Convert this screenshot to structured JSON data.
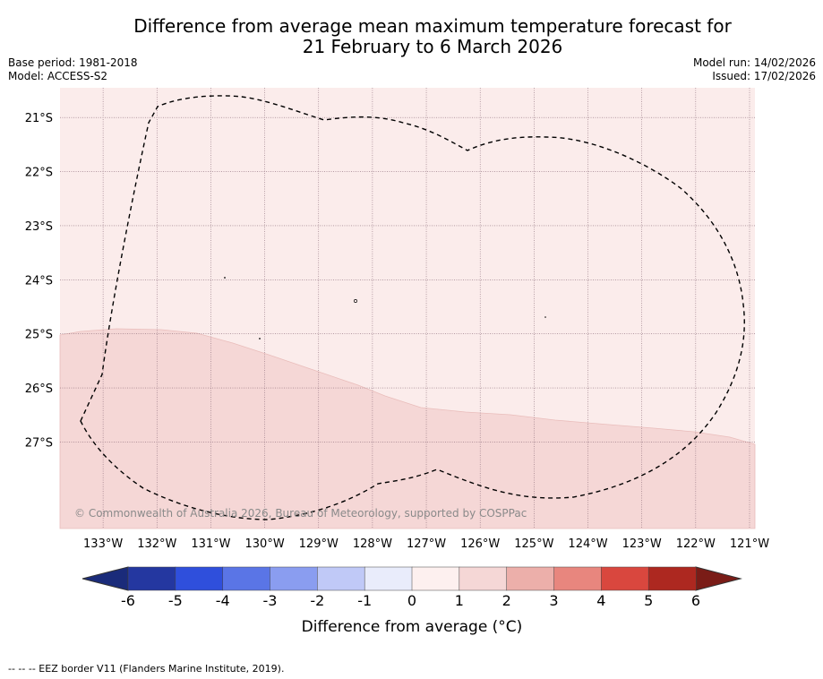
{
  "header": {
    "title_line1": "Difference from average mean maximum temperature forecast for",
    "title_line2": "21 February to 6 March 2026",
    "base_period": "Base period: 1981-2018",
    "model": "Model: ACCESS-S2",
    "model_run": "Model run: 14/02/2026",
    "issued": "Issued: 17/02/2026"
  },
  "map": {
    "lon_labels": [
      "133°W",
      "132°W",
      "131°W",
      "130°W",
      "129°W",
      "128°W",
      "127°W",
      "126°W",
      "125°W",
      "124°W",
      "123°W",
      "122°W",
      "121°W"
    ],
    "lat_labels": [
      "21°S",
      "22°S",
      "23°S",
      "24°S",
      "25°S",
      "26°S",
      "27°S"
    ],
    "lon_range": [
      -133.8,
      -120.9
    ],
    "lat_range": [
      -20.45,
      -28.6
    ],
    "regions": [
      {
        "name": "anomaly-0-to-1",
        "color": "#fbeceb"
      },
      {
        "name": "anomaly-1-to-2",
        "color": "#f5d7d6"
      }
    ],
    "copyright": "© Commonwealth of Australia 2026, Bureau of Meteorology, supported by COSPPac"
  },
  "colorbar": {
    "label": "Difference from average (°C)",
    "ticks": [
      "-6",
      "-5",
      "-4",
      "-3",
      "-2",
      "-1",
      "0",
      "1",
      "2",
      "3",
      "4",
      "5",
      "6"
    ],
    "colors": [
      "#2437a0",
      "#2f4fdc",
      "#5a75e6",
      "#8a9df0",
      "#c0c9f7",
      "#e9ecfb",
      "#fdf0ef",
      "#f5d7d6",
      "#ecafaa",
      "#e8867e",
      "#d9473e",
      "#ad2820"
    ],
    "min_color": "#1a2b7a",
    "max_color": "#7a1c17"
  },
  "footer": {
    "legend": "-- -- -- EEZ border V11 (Flanders Marine Institute, 2019)."
  }
}
